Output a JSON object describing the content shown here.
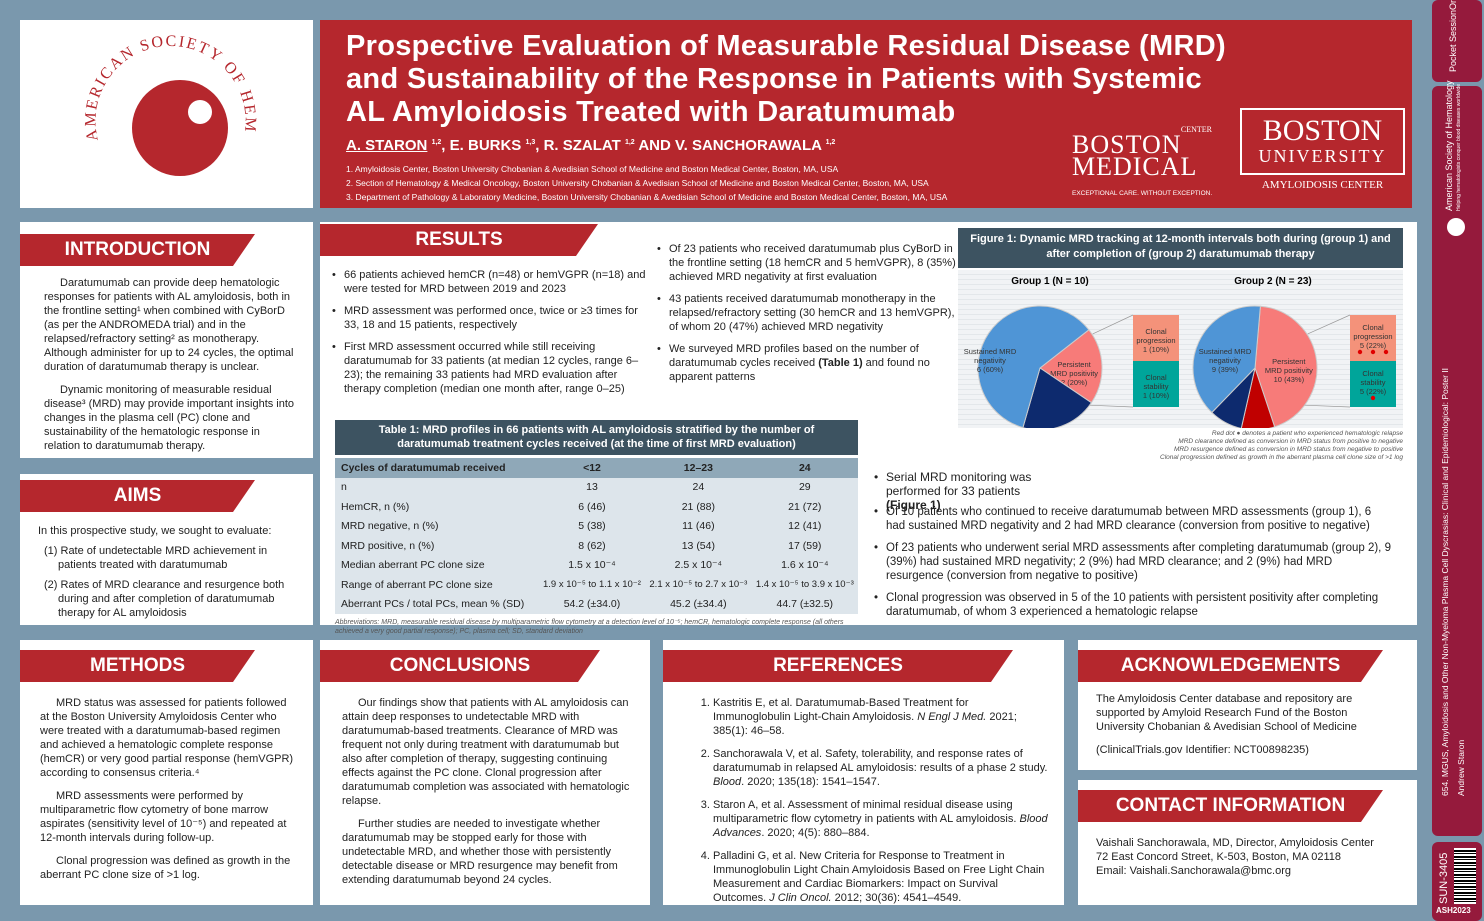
{
  "title": {
    "line1": "Prospective Evaluation of Measurable Residual Disease (MRD)",
    "line2": "and Sustainability of the Response in Patients with Systemic",
    "line3": "AL Amyloidosis Treated with Daratumumab",
    "authors": [
      {
        "name": "A. STARON",
        "sup": "1,2"
      },
      {
        "name": "E. BURKS",
        "sup": "1,3"
      },
      {
        "name": "R. SZALAT",
        "sup": "1,2"
      },
      {
        "name": "V. SANCHORAWALA",
        "sup": "1,2"
      }
    ],
    "and": "AND",
    "affiliations": [
      "1. Amyloidosis Center, Boston University Chobanian & Avedisian School of Medicine and Boston Medical Center, Boston, MA, USA",
      "2. Section of Hematology & Medical Oncology, Boston University Chobanian & Avedisian School of Medicine and Boston Medical Center, Boston, MA, USA",
      "3. Department of Pathology & Laboratory Medicine, Boston University Chobanian & Avedisian School of Medicine and Boston Medical Center, Boston, MA, USA"
    ]
  },
  "logos": {
    "ash": "AMERICAN SOCIETY OF HEMATOLOGY",
    "bmc_1": "BOSTON",
    "bmc_2": "MEDICAL",
    "bmc_center": "CENTER",
    "bmc_tag": "EXCEPTIONAL CARE. WITHOUT EXCEPTION.",
    "bu_1": "BOSTON",
    "bu_2": "UNIVERSITY",
    "bu_center": "AMYLOIDOSIS CENTER"
  },
  "strip": {
    "pocket": "Pocket SessionOnline",
    "society": "American Society of Hematology",
    "society_sub": "Helping hematologists conquer blood diseases worldwide",
    "session": "654. MGUS, Amyloidosis and Other Non-Myeloma Plasma Cell Dyscrasias: Clinical and Epidemiological: Poster II",
    "presenter": "Andrew Staron",
    "poster_id": "SUN-3405",
    "meeting": "ASH2023"
  },
  "introduction": {
    "heading": "INTRODUCTION",
    "paragraphs": [
      "Daratumumab can provide deep hematologic responses for patients with AL amyloidosis, both in the frontline setting¹ when combined with CyBorD (as per the ANDROMEDA trial) and in the relapsed/refractory setting² as monotherapy. Although administer for up to 24 cycles, the optimal duration of daratumumab therapy is unclear.",
      "Dynamic monitoring of measurable residual disease³ (MRD) may provide important insights into changes in the plasma cell (PC) clone and sustainability of the hematologic response in relation to daratumumab therapy."
    ]
  },
  "aims": {
    "heading": "AIMS",
    "intro": "In this prospective study, we sought to evaluate:",
    "items": [
      "(1)  Rate of undetectable MRD achievement in patients treated with daratumumab",
      "(2)  Rates of MRD clearance and resurgence both during and after completion of daratumumab therapy for AL amyloidosis"
    ]
  },
  "results": {
    "heading": "RESULTS",
    "col1": [
      "66 patients achieved hemCR (n=48) or hemVGPR (n=18) and were tested for MRD between 2019 and 2023",
      "MRD assessment was performed once, twice or ≥3 times for 33, 18 and 15 patients, respectively",
      "First MRD assessment occurred while still receiving daratumumab for 33 patients (at median 12 cycles, range 6–23); the remaining 33 patients had MRD evaluation after therapy completion (median one month after, range 0–25)"
    ],
    "col2": [
      "Of 23 patients who received daratumumab plus CyBorD in the frontline setting (18 hemCR and 5 hemVGPR), 8 (35%) achieved MRD negativity at first evaluation",
      "43 patients received daratumumab monotherapy in the relapsed/refractory setting (30 hemCR and 13 hemVGPR), of whom 20 (47%) achieved MRD negativity"
    ],
    "col2_last": "We surveyed MRD profiles based on the number of daratumumab cycles received ",
    "col2_last_bold": "(Table 1)",
    "col2_last_end": " and found no apparent patterns",
    "serial": "Serial MRD monitoring was performed for 33 patients ",
    "serial_bold": "(Figure 1)",
    "bullets": [
      "Of 10 patients who continued to receive daratumumab between MRD assessments (group 1), 6 had sustained MRD negativity and 2 had MRD clearance (conversion from positive to negative)",
      "Of 23 patients who underwent serial MRD assessments after completing daratumumab (group 2), 9 (39%) had sustained MRD negativity; 2 (9%) had MRD clearance; and 2 (9%) had MRD resurgence (conversion from negative to positive)",
      "Clonal progression was observed in 5 of the 10 patients with persistent positivity after completing daratumumab, of whom 3 experienced a hematologic relapse"
    ]
  },
  "table": {
    "title": "Table 1: MRD profiles in 66 patients with AL amyloidosis stratified by the number of daratumumab treatment cycles received (at the time of first MRD evaluation)",
    "headers": [
      "Cycles of daratumumab received",
      "<12",
      "12–23",
      "24"
    ],
    "rows": [
      [
        "n",
        "13",
        "24",
        "29"
      ],
      [
        "HemCR, n (%)",
        "6 (46)",
        "21 (88)",
        "21 (72)"
      ],
      [
        "MRD negative, n (%)",
        "5 (38)",
        "11 (46)",
        "12 (41)"
      ],
      [
        "MRD positive, n (%)",
        "8 (62)",
        "13 (54)",
        "17 (59)"
      ],
      [
        "Median aberrant PC clone size",
        "1.5 x 10⁻⁴",
        "2.5 x 10⁻⁴",
        "1.6 x 10⁻⁴"
      ],
      [
        "Range of aberrant PC clone size",
        "1.9 x 10⁻⁵ to 1.1 x 10⁻²",
        "2.1 x 10⁻⁵ to 2.7 x 10⁻³",
        "1.4 x 10⁻⁵ to 3.9 x 10⁻³"
      ],
      [
        "Aberrant PCs / total PCs, mean % (SD)",
        "54.2 (±34.0)",
        "45.2 (±34.4)",
        "44.7 (±32.5)"
      ]
    ],
    "footnote": "Abbreviations: MRD, measurable residual disease by multiparametric flow cytometry at a detection level of 10⁻⁵; hemCR, hematologic complete response (all others achieved a very good partial response); PC, plasma cell; SD, standard deviation"
  },
  "chart_data": [
    {
      "type": "pie",
      "title": "Group 1 (N = 10)",
      "slices": [
        {
          "label": "Persistent MRD positivity",
          "value": 2,
          "pct": "20%",
          "color": "#f77b79"
        },
        {
          "label": "MRD clearance",
          "value": 2,
          "pct": "20%",
          "color": "#0d2a6e"
        },
        {
          "label": "Sustained MRD negativity",
          "value": 6,
          "pct": "60%",
          "color": "#4f95d6"
        }
      ],
      "breakdown": [
        {
          "label": "Clonal progression",
          "value": 1,
          "pct": "10%",
          "color": "#f4927a",
          "relapse_dots": 0
        },
        {
          "label": "Clonal stability",
          "value": 1,
          "pct": "10%",
          "color": "#00a59a",
          "relapse_dots": 0
        }
      ]
    },
    {
      "type": "pie",
      "title": "Group 2 (N = 23)",
      "slices": [
        {
          "label": "Persistent MRD positivity",
          "value": 10,
          "pct": "43%",
          "color": "#f77b79"
        },
        {
          "label": "MRD resurgence",
          "value": 2,
          "pct": "9%",
          "color": "#c00000"
        },
        {
          "label": "MRD clearance",
          "value": 2,
          "pct": "9%",
          "color": "#0d2a6e"
        },
        {
          "label": "Sustained MRD negativity",
          "value": 9,
          "pct": "39%",
          "color": "#4f95d6"
        }
      ],
      "breakdown": [
        {
          "label": "Clonal progression",
          "value": 5,
          "pct": "22%",
          "color": "#f4927a",
          "relapse_dots": 3
        },
        {
          "label": "Clonal stability",
          "value": 5,
          "pct": "22%",
          "color": "#00a59a",
          "relapse_dots": 1
        }
      ]
    }
  ],
  "figure": {
    "title": "Figure 1: Dynamic MRD tracking at 12-month intervals both during (group 1) and after completion of (group 2) daratumumab therapy",
    "notes": [
      "Red dot ● denotes a patient who experienced hematologic relapse",
      "MRD clearance defined as conversion in MRD status from positive to negative",
      "MRD resurgence defined as conversion in MRD status from negative to positive",
      "Clonal progression defined as growth in the aberrant plasma cell clone size of >1 log"
    ]
  },
  "methods": {
    "heading": "METHODS",
    "paragraphs": [
      "MRD status was assessed for patients followed at the Boston University Amyloidosis Center who were treated with a daratumumab-based regimen and achieved a hematologic complete response (hemCR) or very good partial response (hemVGPR) according to consensus criteria.⁴",
      "MRD assessments were performed by multiparametric flow cytometry of bone marrow aspirates (sensitivity level of 10⁻⁵) and repeated at 12-month intervals during follow-up.",
      "Clonal progression was defined as growth in the aberrant PC clone size of >1 log."
    ]
  },
  "conclusions": {
    "heading": "CONCLUSIONS",
    "paragraphs": [
      "Our findings show that patients with AL amyloidosis can attain deep responses to undetectable MRD with daratumumab-based treatments. Clearance of MRD was frequent not only during treatment with daratumumab but also after completion of therapy, suggesting continuing effects against the PC clone. Clonal progression after daratumumab completion was associated with hematologic relapse.",
      "Further studies are needed to investigate whether daratumumab may be stopped early for those with undetectable MRD, and whether those with persistently detectable disease or MRD resurgence may benefit from extending daratumumab beyond 24 cycles."
    ]
  },
  "references": {
    "heading": "REFERENCES",
    "items": [
      {
        "text": "Kastritis E, et al. Daratumumab-Based Treatment for Immunoglobulin Light-Chain Amyloidosis. ",
        "journal": "N Engl J Med.",
        "rest": " 2021; 385(1): 46–58."
      },
      {
        "text": "Sanchorawala V, et al. Safety, tolerability, and response rates of daratumumab in relapsed AL amyloidosis: results of a phase 2 study. ",
        "journal": "Blood",
        "rest": ". 2020; 135(18): 1541–1547."
      },
      {
        "text": "Staron A, et al. Assessment of minimal residual disease using multiparametric flow cytometry in patients with AL amyloidosis. ",
        "journal": "Blood Advances",
        "rest": ". 2020; 4(5): 880–884."
      },
      {
        "text": "Palladini G, et al. New Criteria for Response to Treatment in Immunoglobulin Light Chain Amyloidosis Based on Free Light Chain Measurement and Cardiac Biomarkers: Impact on Survival Outcomes. ",
        "journal": "J Clin Oncol.",
        "rest": " 2012; 30(36): 4541–4549."
      }
    ]
  },
  "acknowledgements": {
    "heading": "ACKNOWLEDGEMENTS",
    "paragraphs": [
      "The Amyloidosis Center database and repository are supported by Amyloid Research Fund of the Boston University Chobanian & Avedisian School of Medicine",
      "(ClinicalTrials.gov Identifier: NCT00898235)"
    ]
  },
  "contact": {
    "heading": "CONTACT INFORMATION",
    "lines": [
      "Vaishali Sanchorawala, MD, Director, Amyloidosis Center",
      "72 East Concord Street, K-503, Boston, MA 02118",
      "Email: Vaishali.Sanchorawala@bmc.org"
    ]
  }
}
